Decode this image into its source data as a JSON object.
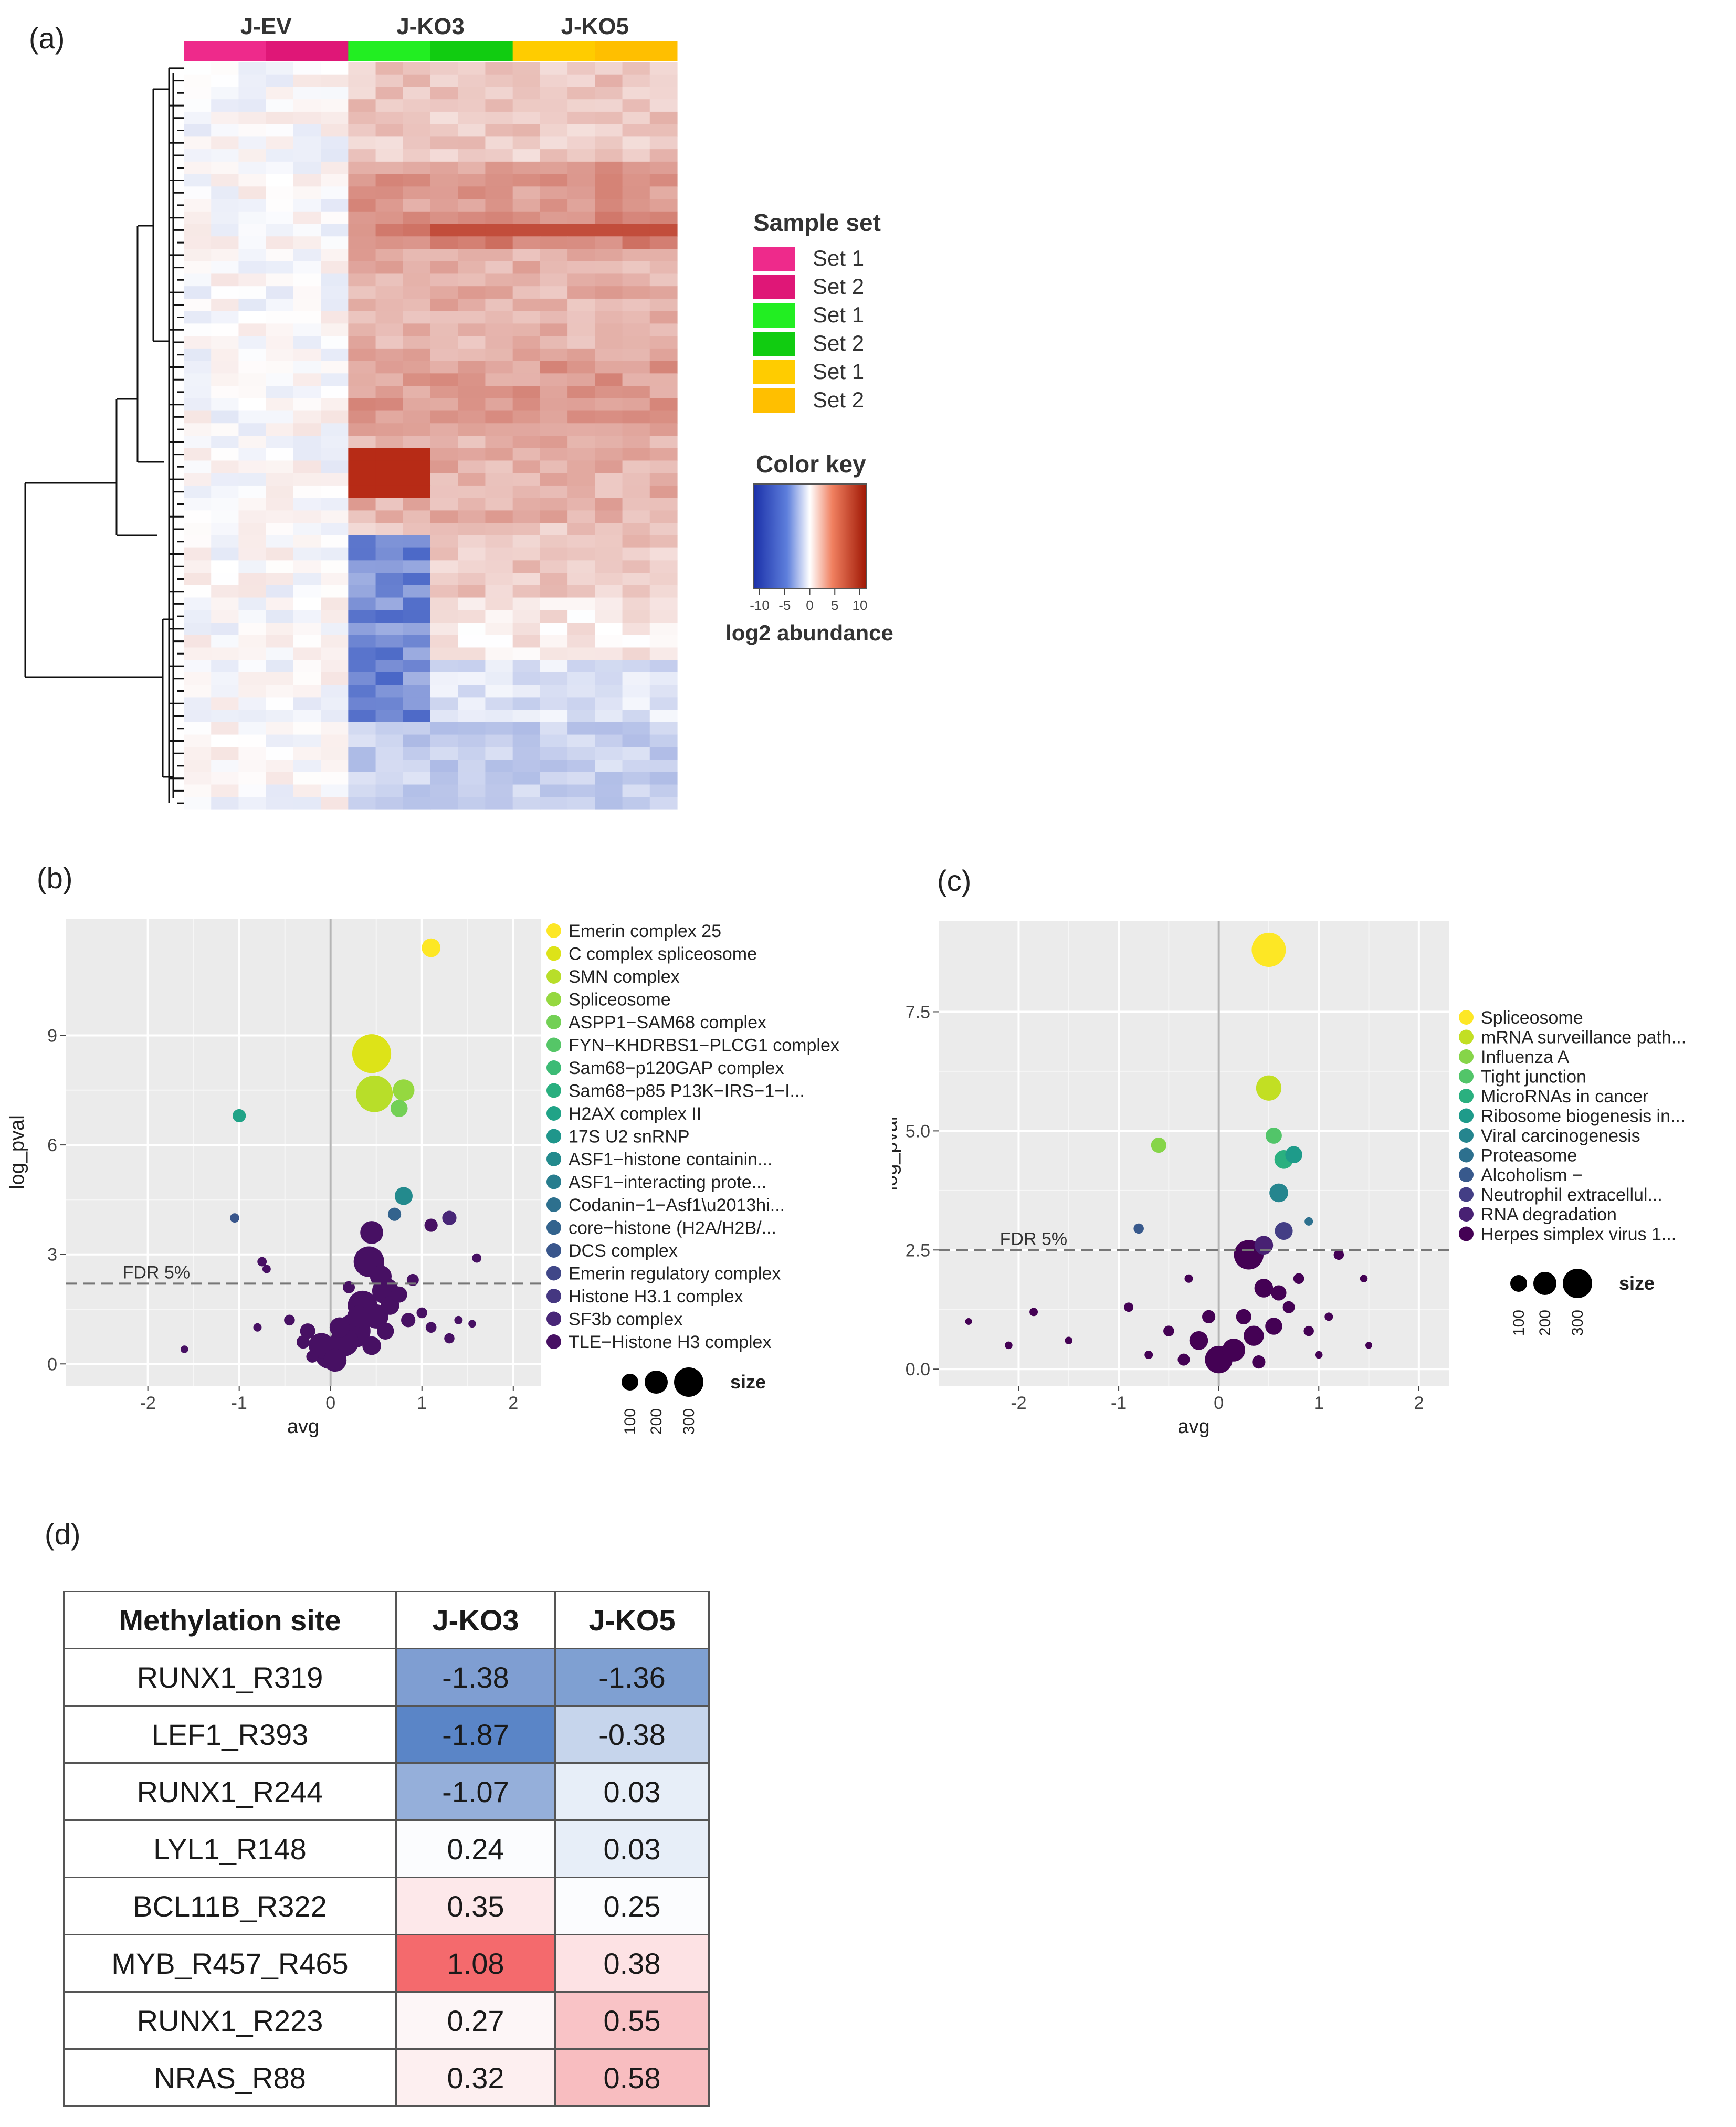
{
  "figure": {
    "panel_labels": [
      "(a)",
      "(b)",
      "(c)",
      "(d)"
    ]
  },
  "colors": {
    "bg": "#ffffff",
    "plot_bg": "#ebebeb",
    "grid": "#ffffff",
    "pink": "#ee2a8b",
    "pink_dark": "#df1777",
    "green": "#22ee22",
    "green_dark": "#11cc11",
    "yellow": "#ffcc00",
    "yellow_dark": "#ffbf00",
    "blue": "#1a3fb8",
    "red": "#b3200a"
  },
  "chart_data": [
    {
      "id": "a",
      "type": "heatmap",
      "title": "",
      "groups": [
        "J-EV",
        "J-KO3",
        "J-KO5"
      ],
      "columns_per_group": 6,
      "rows": 60,
      "legend": {
        "sample_set_title": "Sample set",
        "sample_sets": [
          {
            "label": "Set 1",
            "color": "#ee2a8b"
          },
          {
            "label": "Set 2",
            "color": "#df1777"
          },
          {
            "label": "Set 1",
            "color": "#22ee22"
          },
          {
            "label": "Set 2",
            "color": "#11cc11"
          },
          {
            "label": "Set 1",
            "color": "#ffcc00"
          },
          {
            "label": "Set 2",
            "color": "#ffbf00"
          }
        ],
        "color_key_title": "Color key",
        "color_key_ticks": [
          "-10",
          "-5",
          "0",
          "5",
          "10"
        ],
        "color_key_range": [
          -10,
          10
        ],
        "color_key_label": "log2 abundance"
      }
    },
    {
      "id": "b",
      "type": "scatter",
      "xlabel": "avg",
      "ylabel": "log_pval",
      "xlim": [
        -2.9,
        2.3
      ],
      "ylim": [
        -0.6,
        12.2
      ],
      "xticks": [
        -2,
        -1,
        0,
        1,
        2
      ],
      "yticks": [
        0,
        3,
        6,
        9
      ],
      "fdr_label": "FDR 5%",
      "fdr_y": 2.2,
      "size_legend": {
        "title": "size",
        "values": [
          100,
          200,
          300
        ]
      },
      "legend": [
        {
          "label": "Emerin complex 25",
          "color": "#fde725"
        },
        {
          "label": "C complex spliceosome",
          "color": "#dde318"
        },
        {
          "label": "SMN complex",
          "color": "#b8de29"
        },
        {
          "label": "Spliceosome",
          "color": "#95d840"
        },
        {
          "label": "ASPP1−SAM68 complex",
          "color": "#73d055"
        },
        {
          "label": "FYN−KHDRBS1−PLCG1 complex",
          "color": "#55c667"
        },
        {
          "label": "Sam68−p120GAP complex",
          "color": "#3cbb75"
        },
        {
          "label": "Sam68−p85 P13K−IRS−1−I...",
          "color": "#29af7f"
        },
        {
          "label": "H2AX complex II",
          "color": "#20a387"
        },
        {
          "label": "17S U2 snRNP",
          "color": "#1f968b"
        },
        {
          "label": "ASF1−histone containin...",
          "color": "#238a8d"
        },
        {
          "label": "ASF1−interacting prote...",
          "color": "#287d8e"
        },
        {
          "label": "Codanin−1−Asf1\\u2013hi...",
          "color": "#2d708e"
        },
        {
          "label": "core−histone (H2A/H2B/...",
          "color": "#33638d"
        },
        {
          "label": "DCS complex",
          "color": "#39568c"
        },
        {
          "label": "Emerin regulatory complex",
          "color": "#404788"
        },
        {
          "label": "Histone H3.1 complex",
          "color": "#453781"
        },
        {
          "label": "SF3b complex",
          "color": "#482677"
        },
        {
          "label": "TLE−Histone H3 complex",
          "color": "#471063"
        }
      ],
      "points": [
        {
          "x": 1.1,
          "y": 11.4,
          "s": 60,
          "c": "#fde725"
        },
        {
          "x": 0.45,
          "y": 8.5,
          "s": 260,
          "c": "#dde318"
        },
        {
          "x": 0.48,
          "y": 7.4,
          "s": 230,
          "c": "#b8de29"
        },
        {
          "x": 0.8,
          "y": 7.5,
          "s": 80,
          "c": "#95d840"
        },
        {
          "x": 0.75,
          "y": 7.0,
          "s": 50,
          "c": "#73d055"
        },
        {
          "x": -1.0,
          "y": 6.8,
          "s": 30,
          "c": "#20a387"
        },
        {
          "x": 0.8,
          "y": 4.6,
          "s": 55,
          "c": "#238a8d"
        },
        {
          "x": 0.7,
          "y": 4.1,
          "s": 30,
          "c": "#33638d"
        },
        {
          "x": -1.05,
          "y": 4.0,
          "s": 15,
          "c": "#39568c"
        },
        {
          "x": 1.3,
          "y": 4.0,
          "s": 35,
          "c": "#482677"
        },
        {
          "x": 1.1,
          "y": 3.8,
          "s": 30,
          "c": "#471063"
        },
        {
          "x": 0.45,
          "y": 3.6,
          "s": 90,
          "c": "#471063"
        },
        {
          "x": 0.42,
          "y": 2.8,
          "s": 160,
          "c": "#471063"
        },
        {
          "x": 0.55,
          "y": 2.4,
          "s": 80,
          "c": "#471063"
        },
        {
          "x": 1.6,
          "y": 2.9,
          "s": 15,
          "c": "#471063"
        },
        {
          "x": -0.75,
          "y": 2.8,
          "s": 15,
          "c": "#471063"
        },
        {
          "x": -0.7,
          "y": 2.6,
          "s": 12,
          "c": "#471063"
        },
        {
          "x": 0.6,
          "y": 2.0,
          "s": 120,
          "c": "#471063"
        },
        {
          "x": 0.35,
          "y": 1.6,
          "s": 150,
          "c": "#471063"
        },
        {
          "x": 0.5,
          "y": 1.3,
          "s": 100,
          "c": "#471063"
        },
        {
          "x": 0.25,
          "y": 0.9,
          "s": 200,
          "c": "#471063"
        },
        {
          "x": 0.15,
          "y": 0.6,
          "s": 140,
          "c": "#471063"
        },
        {
          "x": 0.0,
          "y": 0.3,
          "s": 180,
          "c": "#471063"
        },
        {
          "x": -0.1,
          "y": 0.5,
          "s": 110,
          "c": "#471063"
        },
        {
          "x": -0.25,
          "y": 0.9,
          "s": 40,
          "c": "#471063"
        },
        {
          "x": 0.65,
          "y": 1.6,
          "s": 60,
          "c": "#471063"
        },
        {
          "x": 0.75,
          "y": 1.9,
          "s": 45,
          "c": "#471063"
        },
        {
          "x": 0.85,
          "y": 1.2,
          "s": 35,
          "c": "#471063"
        },
        {
          "x": 1.0,
          "y": 1.4,
          "s": 20,
          "c": "#471063"
        },
        {
          "x": 1.1,
          "y": 1.0,
          "s": 20,
          "c": "#471063"
        },
        {
          "x": 1.3,
          "y": 0.7,
          "s": 18,
          "c": "#471063"
        },
        {
          "x": 1.4,
          "y": 1.2,
          "s": 12,
          "c": "#471063"
        },
        {
          "x": -0.45,
          "y": 1.2,
          "s": 20,
          "c": "#471063"
        },
        {
          "x": -0.3,
          "y": 0.6,
          "s": 30,
          "c": "#471063"
        },
        {
          "x": -0.2,
          "y": 0.2,
          "s": 25,
          "c": "#471063"
        },
        {
          "x": 0.1,
          "y": 1.0,
          "s": 70,
          "c": "#471063"
        },
        {
          "x": 0.3,
          "y": 1.3,
          "s": 80,
          "c": "#471063"
        },
        {
          "x": 0.45,
          "y": 0.5,
          "s": 60,
          "c": "#471063"
        },
        {
          "x": 0.6,
          "y": 0.9,
          "s": 50,
          "c": "#471063"
        },
        {
          "x": -1.6,
          "y": 0.4,
          "s": 10,
          "c": "#471063"
        },
        {
          "x": -0.8,
          "y": 1.0,
          "s": 12,
          "c": "#471063"
        },
        {
          "x": 1.55,
          "y": 1.1,
          "s": 10,
          "c": "#471063"
        },
        {
          "x": 0.9,
          "y": 2.3,
          "s": 25,
          "c": "#471063"
        },
        {
          "x": 0.2,
          "y": 2.1,
          "s": 25,
          "c": "#471063"
        },
        {
          "x": 0.05,
          "y": 0.1,
          "s": 90,
          "c": "#471063"
        }
      ]
    },
    {
      "id": "c",
      "type": "scatter",
      "xlabel": "avg",
      "ylabel": "log_pval",
      "xlim": [
        -2.8,
        2.3
      ],
      "ylim": [
        -0.35,
        9.4
      ],
      "xticks": [
        -2,
        -1,
        0,
        1,
        2
      ],
      "yticks": [
        0.0,
        2.5,
        5.0,
        7.5
      ],
      "ytick_labels": [
        "0.0",
        "2.5",
        "5.0",
        "7.5"
      ],
      "fdr_label": "FDR 5%",
      "fdr_y": 2.5,
      "size_legend": {
        "title": "size",
        "values": [
          100,
          200,
          300
        ]
      },
      "legend": [
        {
          "label": "Spliceosome",
          "color": "#fde725"
        },
        {
          "label": "mRNA surveillance path...",
          "color": "#c2df23"
        },
        {
          "label": "Influenza A",
          "color": "#86d549"
        },
        {
          "label": "Tight junction",
          "color": "#52c569"
        },
        {
          "label": "MicroRNAs in cancer",
          "color": "#2ab07f"
        },
        {
          "label": "Ribosome biogenesis in...",
          "color": "#1e9b8a"
        },
        {
          "label": "Viral carcinogenesis",
          "color": "#25858e"
        },
        {
          "label": "Proteasome",
          "color": "#2d708e"
        },
        {
          "label": "Alcoholism −",
          "color": "#38598c"
        },
        {
          "label": "Neutrophil extracellul...",
          "color": "#433e85"
        },
        {
          "label": "RNA degradation",
          "color": "#482173"
        },
        {
          "label": "Herpes simplex virus 1...",
          "color": "#440154"
        }
      ],
      "points": [
        {
          "x": 0.5,
          "y": 8.8,
          "s": 200,
          "c": "#fde725"
        },
        {
          "x": 0.5,
          "y": 5.9,
          "s": 110,
          "c": "#c2df23"
        },
        {
          "x": -0.6,
          "y": 4.7,
          "s": 40,
          "c": "#86d549"
        },
        {
          "x": 0.55,
          "y": 4.9,
          "s": 45,
          "c": "#52c569"
        },
        {
          "x": 0.65,
          "y": 4.4,
          "s": 60,
          "c": "#2ab07f"
        },
        {
          "x": 0.75,
          "y": 4.5,
          "s": 50,
          "c": "#1e9b8a"
        },
        {
          "x": 0.6,
          "y": 3.7,
          "s": 60,
          "c": "#25858e"
        },
        {
          "x": 0.9,
          "y": 3.1,
          "s": 12,
          "c": "#2d708e"
        },
        {
          "x": -0.8,
          "y": 2.95,
          "s": 18,
          "c": "#38598c"
        },
        {
          "x": 0.65,
          "y": 2.9,
          "s": 55,
          "c": "#433e85"
        },
        {
          "x": 0.45,
          "y": 2.6,
          "s": 60,
          "c": "#482173"
        },
        {
          "x": 0.3,
          "y": 2.4,
          "s": 150,
          "c": "#440154"
        },
        {
          "x": 0.45,
          "y": 1.7,
          "s": 60,
          "c": "#440154"
        },
        {
          "x": 0.6,
          "y": 1.6,
          "s": 40,
          "c": "#440154"
        },
        {
          "x": 0.8,
          "y": 1.9,
          "s": 20,
          "c": "#440154"
        },
        {
          "x": 1.2,
          "y": 2.4,
          "s": 18,
          "c": "#440154"
        },
        {
          "x": 1.45,
          "y": 1.9,
          "s": 10,
          "c": "#440154"
        },
        {
          "x": -0.3,
          "y": 1.9,
          "s": 12,
          "c": "#440154"
        },
        {
          "x": -0.9,
          "y": 1.3,
          "s": 15,
          "c": "#440154"
        },
        {
          "x": -1.85,
          "y": 1.2,
          "s": 12,
          "c": "#440154"
        },
        {
          "x": -0.5,
          "y": 0.8,
          "s": 20,
          "c": "#440154"
        },
        {
          "x": -0.2,
          "y": 0.6,
          "s": 60,
          "c": "#440154"
        },
        {
          "x": 0.0,
          "y": 0.2,
          "s": 130,
          "c": "#440154"
        },
        {
          "x": 0.15,
          "y": 0.4,
          "s": 90,
          "c": "#440154"
        },
        {
          "x": 0.35,
          "y": 0.7,
          "s": 70,
          "c": "#440154"
        },
        {
          "x": 0.55,
          "y": 0.9,
          "s": 50,
          "c": "#440154"
        },
        {
          "x": -0.1,
          "y": 1.1,
          "s": 30,
          "c": "#440154"
        },
        {
          "x": 0.25,
          "y": 1.1,
          "s": 40,
          "c": "#440154"
        },
        {
          "x": 0.7,
          "y": 1.3,
          "s": 25,
          "c": "#440154"
        },
        {
          "x": 0.9,
          "y": 0.8,
          "s": 18,
          "c": "#440154"
        },
        {
          "x": 1.1,
          "y": 1.1,
          "s": 12,
          "c": "#440154"
        },
        {
          "x": -2.5,
          "y": 1.0,
          "s": 8,
          "c": "#440154"
        },
        {
          "x": -2.1,
          "y": 0.5,
          "s": 10,
          "c": "#440154"
        },
        {
          "x": -1.5,
          "y": 0.6,
          "s": 10,
          "c": "#440154"
        },
        {
          "x": -0.7,
          "y": 0.3,
          "s": 12,
          "c": "#440154"
        },
        {
          "x": 1.0,
          "y": 0.3,
          "s": 10,
          "c": "#440154"
        },
        {
          "x": 1.5,
          "y": 0.5,
          "s": 8,
          "c": "#440154"
        },
        {
          "x": -0.35,
          "y": 0.2,
          "s": 25,
          "c": "#440154"
        },
        {
          "x": 0.4,
          "y": 0.15,
          "s": 30,
          "c": "#440154"
        }
      ]
    }
  ],
  "table_d": {
    "headers": [
      "Methylation site",
      "J-KO3",
      "J-KO5"
    ],
    "rows": [
      {
        "site": "RUNX1_R319",
        "ko3": "-1.38",
        "ko5": "-1.36",
        "ko3_color": "#7f9ed2",
        "ko5_color": "#7fa0d2"
      },
      {
        "site": "LEF1_R393",
        "ko3": "-1.87",
        "ko5": "-0.38",
        "ko3_color": "#5a85c7",
        "ko5_color": "#c6d5ec"
      },
      {
        "site": "RUNX1_R244",
        "ko3": "-1.07",
        "ko5": "0.03",
        "ko3_color": "#95afda",
        "ko5_color": "#e7eef8"
      },
      {
        "site": "LYL1_R148",
        "ko3": "0.24",
        "ko5": "0.03",
        "ko3_color": "#fbfcfe",
        "ko5_color": "#e7eef8"
      },
      {
        "site": "BCL11B_R322",
        "ko3": "0.35",
        "ko5": "0.25",
        "ko3_color": "#fde8ea",
        "ko5_color": "#fbfcfe"
      },
      {
        "site": "MYB_R457_R465",
        "ko3": "1.08",
        "ko5": "0.38",
        "ko3_color": "#f46a6d",
        "ko5_color": "#fde2e4"
      },
      {
        "site": "RUNX1_R223",
        "ko3": "0.27",
        "ko5": "0.55",
        "ko3_color": "#fdf6f7",
        "ko5_color": "#f9c3c6"
      },
      {
        "site": "NRAS_R88",
        "ko3": "0.32",
        "ko5": "0.58",
        "ko3_color": "#fdeff0",
        "ko5_color": "#f8bdc0"
      }
    ]
  }
}
